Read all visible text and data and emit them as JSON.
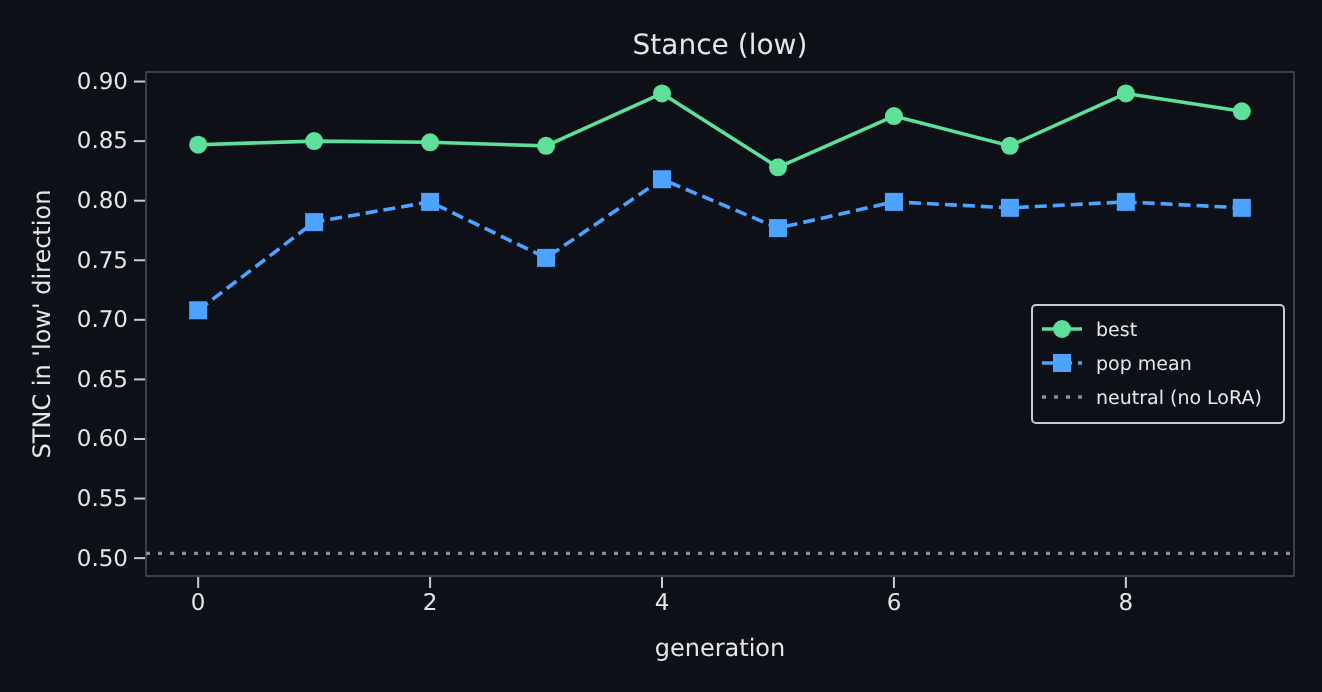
{
  "chart_data": {
    "type": "line",
    "title": "Stance (low)",
    "xlabel": "generation",
    "ylabel": "STNC in 'low' direction",
    "x": [
      0,
      1,
      2,
      3,
      4,
      5,
      6,
      7,
      8,
      9
    ],
    "series": [
      {
        "name": "best",
        "color": "#5ee09a",
        "marker": "circle",
        "line_style": "solid",
        "values": [
          0.847,
          0.85,
          0.849,
          0.846,
          0.89,
          0.828,
          0.871,
          0.846,
          0.89,
          0.875
        ]
      },
      {
        "name": "pop mean",
        "color": "#4da3ff",
        "marker": "square",
        "line_style": "dashed",
        "values": [
          0.708,
          0.782,
          0.799,
          0.752,
          0.818,
          0.777,
          0.799,
          0.794,
          0.799,
          0.794
        ]
      }
    ],
    "ref_lines": [
      {
        "axis": "y",
        "value": 0.504,
        "label": "neutral (no LoRA)",
        "color": "#8b8f96",
        "line_style": "dotted"
      }
    ],
    "xlim": [
      -0.45,
      9.45
    ],
    "ylim": [
      0.485,
      0.908
    ],
    "xticks": [
      0,
      2,
      4,
      6,
      8
    ],
    "yticks": [
      {
        "value": 0.5,
        "label": "0.50"
      },
      {
        "value": 0.55,
        "label": "0.55"
      },
      {
        "value": 0.6,
        "label": "0.60"
      },
      {
        "value": 0.65,
        "label": "0.65"
      },
      {
        "value": 0.7,
        "label": "0.70"
      },
      {
        "value": 0.75,
        "label": "0.75"
      },
      {
        "value": 0.8,
        "label": "0.80"
      },
      {
        "value": 0.85,
        "label": "0.85"
      },
      {
        "value": 0.9,
        "label": "0.90"
      }
    ],
    "grid": false,
    "legend": "right"
  }
}
